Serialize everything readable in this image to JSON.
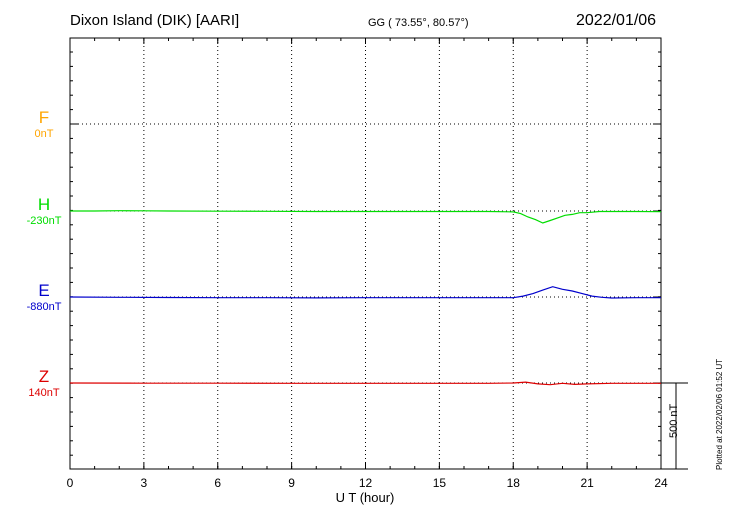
{
  "header": {
    "station": "Dixon Island (DIK)  [AARI]",
    "coords": "GG ( 73.55°,  80.57°)",
    "date": "2022/01/06"
  },
  "chart_data": {
    "type": "line",
    "xlabel": "U T (hour)",
    "xlim": [
      0,
      24
    ],
    "xticks": [
      0,
      3,
      6,
      9,
      12,
      15,
      18,
      21,
      24
    ],
    "xtick_labels": [
      "0",
      "3",
      "6",
      "9",
      "12",
      "15",
      "18",
      "21",
      "24"
    ],
    "grid": true,
    "scale_bar": {
      "label": "500 nT",
      "nT": 500
    },
    "series": [
      {
        "name": "F",
        "baseline_label": "0nT",
        "color": "#ffa500",
        "values": []
      },
      {
        "name": "H",
        "baseline_label": "-230nT",
        "color": "#00dd00",
        "values": [
          [
            0,
            -230
          ],
          [
            1,
            -230
          ],
          [
            2,
            -228
          ],
          [
            3,
            -229
          ],
          [
            4,
            -230
          ],
          [
            6,
            -231
          ],
          [
            8,
            -232
          ],
          [
            10,
            -233
          ],
          [
            12,
            -233
          ],
          [
            14,
            -233
          ],
          [
            16,
            -233
          ],
          [
            17,
            -233
          ],
          [
            18,
            -235
          ],
          [
            18.3,
            -245
          ],
          [
            18.6,
            -265
          ],
          [
            18.9,
            -280
          ],
          [
            19.2,
            -300
          ],
          [
            19.5,
            -285
          ],
          [
            19.8,
            -270
          ],
          [
            20.1,
            -255
          ],
          [
            20.4,
            -250
          ],
          [
            20.7,
            -240
          ],
          [
            21,
            -240
          ],
          [
            21.5,
            -233
          ],
          [
            22,
            -233
          ],
          [
            23,
            -233
          ],
          [
            24,
            -234
          ]
        ]
      },
      {
        "name": "E",
        "baseline_label": "-880nT",
        "color": "#0000cc",
        "values": [
          [
            0,
            -880
          ],
          [
            2,
            -882
          ],
          [
            4,
            -883
          ],
          [
            6,
            -884
          ],
          [
            8,
            -884
          ],
          [
            10,
            -885
          ],
          [
            12,
            -884
          ],
          [
            14,
            -884
          ],
          [
            16,
            -884
          ],
          [
            18,
            -884
          ],
          [
            18.4,
            -875
          ],
          [
            18.8,
            -860
          ],
          [
            19.2,
            -840
          ],
          [
            19.6,
            -820
          ],
          [
            20,
            -835
          ],
          [
            20.4,
            -845
          ],
          [
            20.8,
            -860
          ],
          [
            21.2,
            -875
          ],
          [
            21.6,
            -882
          ],
          [
            22,
            -886
          ],
          [
            23,
            -884
          ],
          [
            24,
            -884
          ]
        ]
      },
      {
        "name": "Z",
        "baseline_label": "140nT",
        "color": "#dd0000",
        "values": [
          [
            0,
            140
          ],
          [
            3,
            139
          ],
          [
            6,
            139
          ],
          [
            9,
            138
          ],
          [
            12,
            138
          ],
          [
            15,
            138
          ],
          [
            17,
            138
          ],
          [
            18,
            140
          ],
          [
            18.5,
            145
          ],
          [
            19,
            135
          ],
          [
            19.5,
            130
          ],
          [
            20,
            138
          ],
          [
            20.5,
            132
          ],
          [
            21,
            135
          ],
          [
            22,
            138
          ],
          [
            23,
            138
          ],
          [
            24,
            138
          ]
        ]
      }
    ]
  },
  "footer": {
    "plotted": "Plotted at 2022/02/06 01:52 UT"
  }
}
